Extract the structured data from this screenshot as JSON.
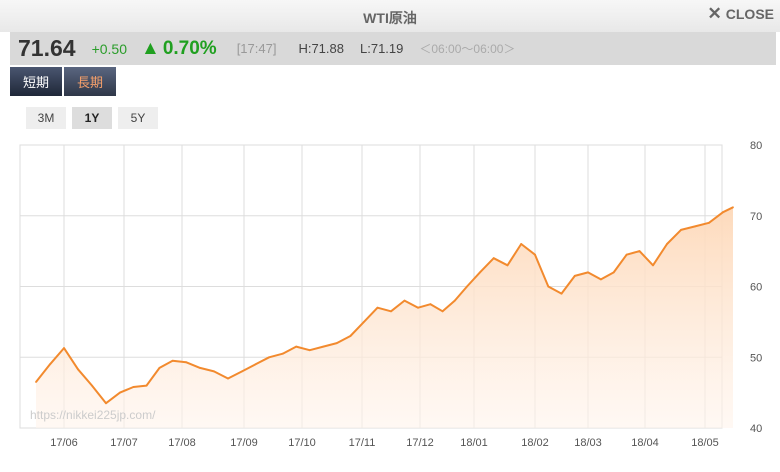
{
  "window": {
    "title": "WTI原油",
    "close_label": "CLOSE",
    "close_icon": "close-icon"
  },
  "quote": {
    "price": "71.64",
    "change": "+0.50",
    "percent": "0.70%",
    "time": "[17:47]",
    "high": "H:71.88",
    "low": "L:71.19",
    "session": "＜06:00〜06:00＞",
    "up_color": "#20a020"
  },
  "tabs": [
    {
      "label": "短期"
    },
    {
      "label": "長期",
      "active": true
    }
  ],
  "ranges": [
    {
      "label": "3M"
    },
    {
      "label": "1Y",
      "active": true
    },
    {
      "label": "5Y"
    }
  ],
  "watermark": "https://nikkei225jp.com/",
  "chart_data": {
    "type": "area",
    "line_color": "#f28a2e",
    "fill_color": "#fdd8b8",
    "ylim": [
      40,
      80
    ],
    "yticks": [
      "80",
      "70",
      "60",
      "50",
      "40"
    ],
    "xticks": [
      "17/06",
      "17/07",
      "17/08",
      "17/09",
      "17/10",
      "17/11",
      "17/12",
      "18/01",
      "18/02",
      "18/03",
      "18/04",
      "18/05"
    ],
    "grid": true,
    "x": [
      "17/05/18",
      "17/05/25",
      "17/06/01",
      "17/06/08",
      "17/06/15",
      "17/06/22",
      "17/06/29",
      "17/07/06",
      "17/07/13",
      "17/07/20",
      "17/07/27",
      "17/08/03",
      "17/08/10",
      "17/08/17",
      "17/08/24",
      "17/08/31",
      "17/09/07",
      "17/09/14",
      "17/09/21",
      "17/09/28",
      "17/10/05",
      "17/10/12",
      "17/10/19",
      "17/10/26",
      "17/11/02",
      "17/11/09",
      "17/11/16",
      "17/11/23",
      "17/11/30",
      "17/12/07",
      "17/12/14",
      "17/12/21",
      "17/12/28",
      "18/01/04",
      "18/01/11",
      "18/01/18",
      "18/01/25",
      "18/02/01",
      "18/02/08",
      "18/02/15",
      "18/02/22",
      "18/03/01",
      "18/03/08",
      "18/03/15",
      "18/03/22",
      "18/03/29",
      "18/04/05",
      "18/04/12",
      "18/04/19",
      "18/04/26",
      "18/05/03",
      "18/05/10",
      "18/05/15"
    ],
    "values": [
      46.5,
      49.0,
      51.3,
      48.3,
      46.0,
      43.5,
      45.0,
      45.8,
      46.0,
      48.5,
      49.5,
      49.3,
      48.5,
      48.0,
      47.0,
      48.0,
      49.0,
      50.0,
      50.5,
      51.5,
      51.0,
      51.5,
      52.0,
      53.0,
      55.0,
      57.0,
      56.5,
      58.0,
      57.0,
      57.5,
      56.5,
      58.0,
      60.0,
      62.0,
      64.0,
      63.0,
      66.0,
      64.5,
      60.0,
      59.0,
      61.5,
      62.0,
      61.0,
      62.0,
      64.5,
      65.0,
      63.0,
      66.0,
      68.0,
      68.5,
      69.0,
      70.5,
      71.2
    ]
  }
}
